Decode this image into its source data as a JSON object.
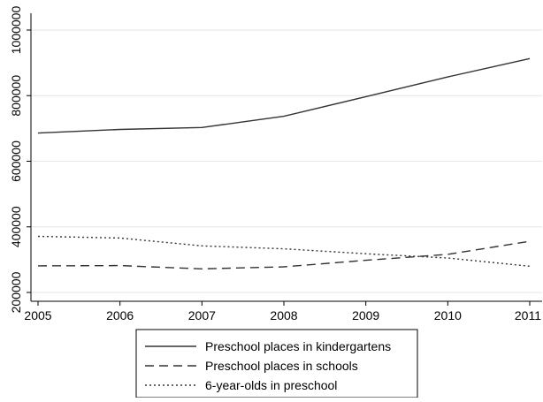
{
  "chart_data": {
    "type": "line",
    "title": "",
    "xlabel": "",
    "ylabel": "",
    "x": [
      2005,
      2006,
      2007,
      2008,
      2009,
      2010,
      2011
    ],
    "xticks": [
      "2005",
      "2006",
      "2007",
      "2008",
      "2009",
      "2010",
      "2011"
    ],
    "yticks": [
      "200000",
      "400000",
      "600000",
      "800000",
      "1000000"
    ],
    "ylim": [
      200000,
      1000000
    ],
    "grid": true,
    "legend_position": "bottom",
    "series": [
      {
        "name": "Preschool places in kindergartens",
        "style": "solid",
        "color": "#333333",
        "values": [
          686000,
          697000,
          703000,
          737000,
          797000,
          857000,
          913000
        ]
      },
      {
        "name": "Preschool places in schools",
        "style": "dashed",
        "color": "#333333",
        "values": [
          281000,
          282000,
          272000,
          278000,
          298000,
          316000,
          356000
        ]
      },
      {
        "name": "6-year-olds in preschool",
        "style": "dotted",
        "color": "#333333",
        "values": [
          371000,
          366000,
          342000,
          333000,
          318000,
          305000,
          280000
        ]
      }
    ]
  }
}
